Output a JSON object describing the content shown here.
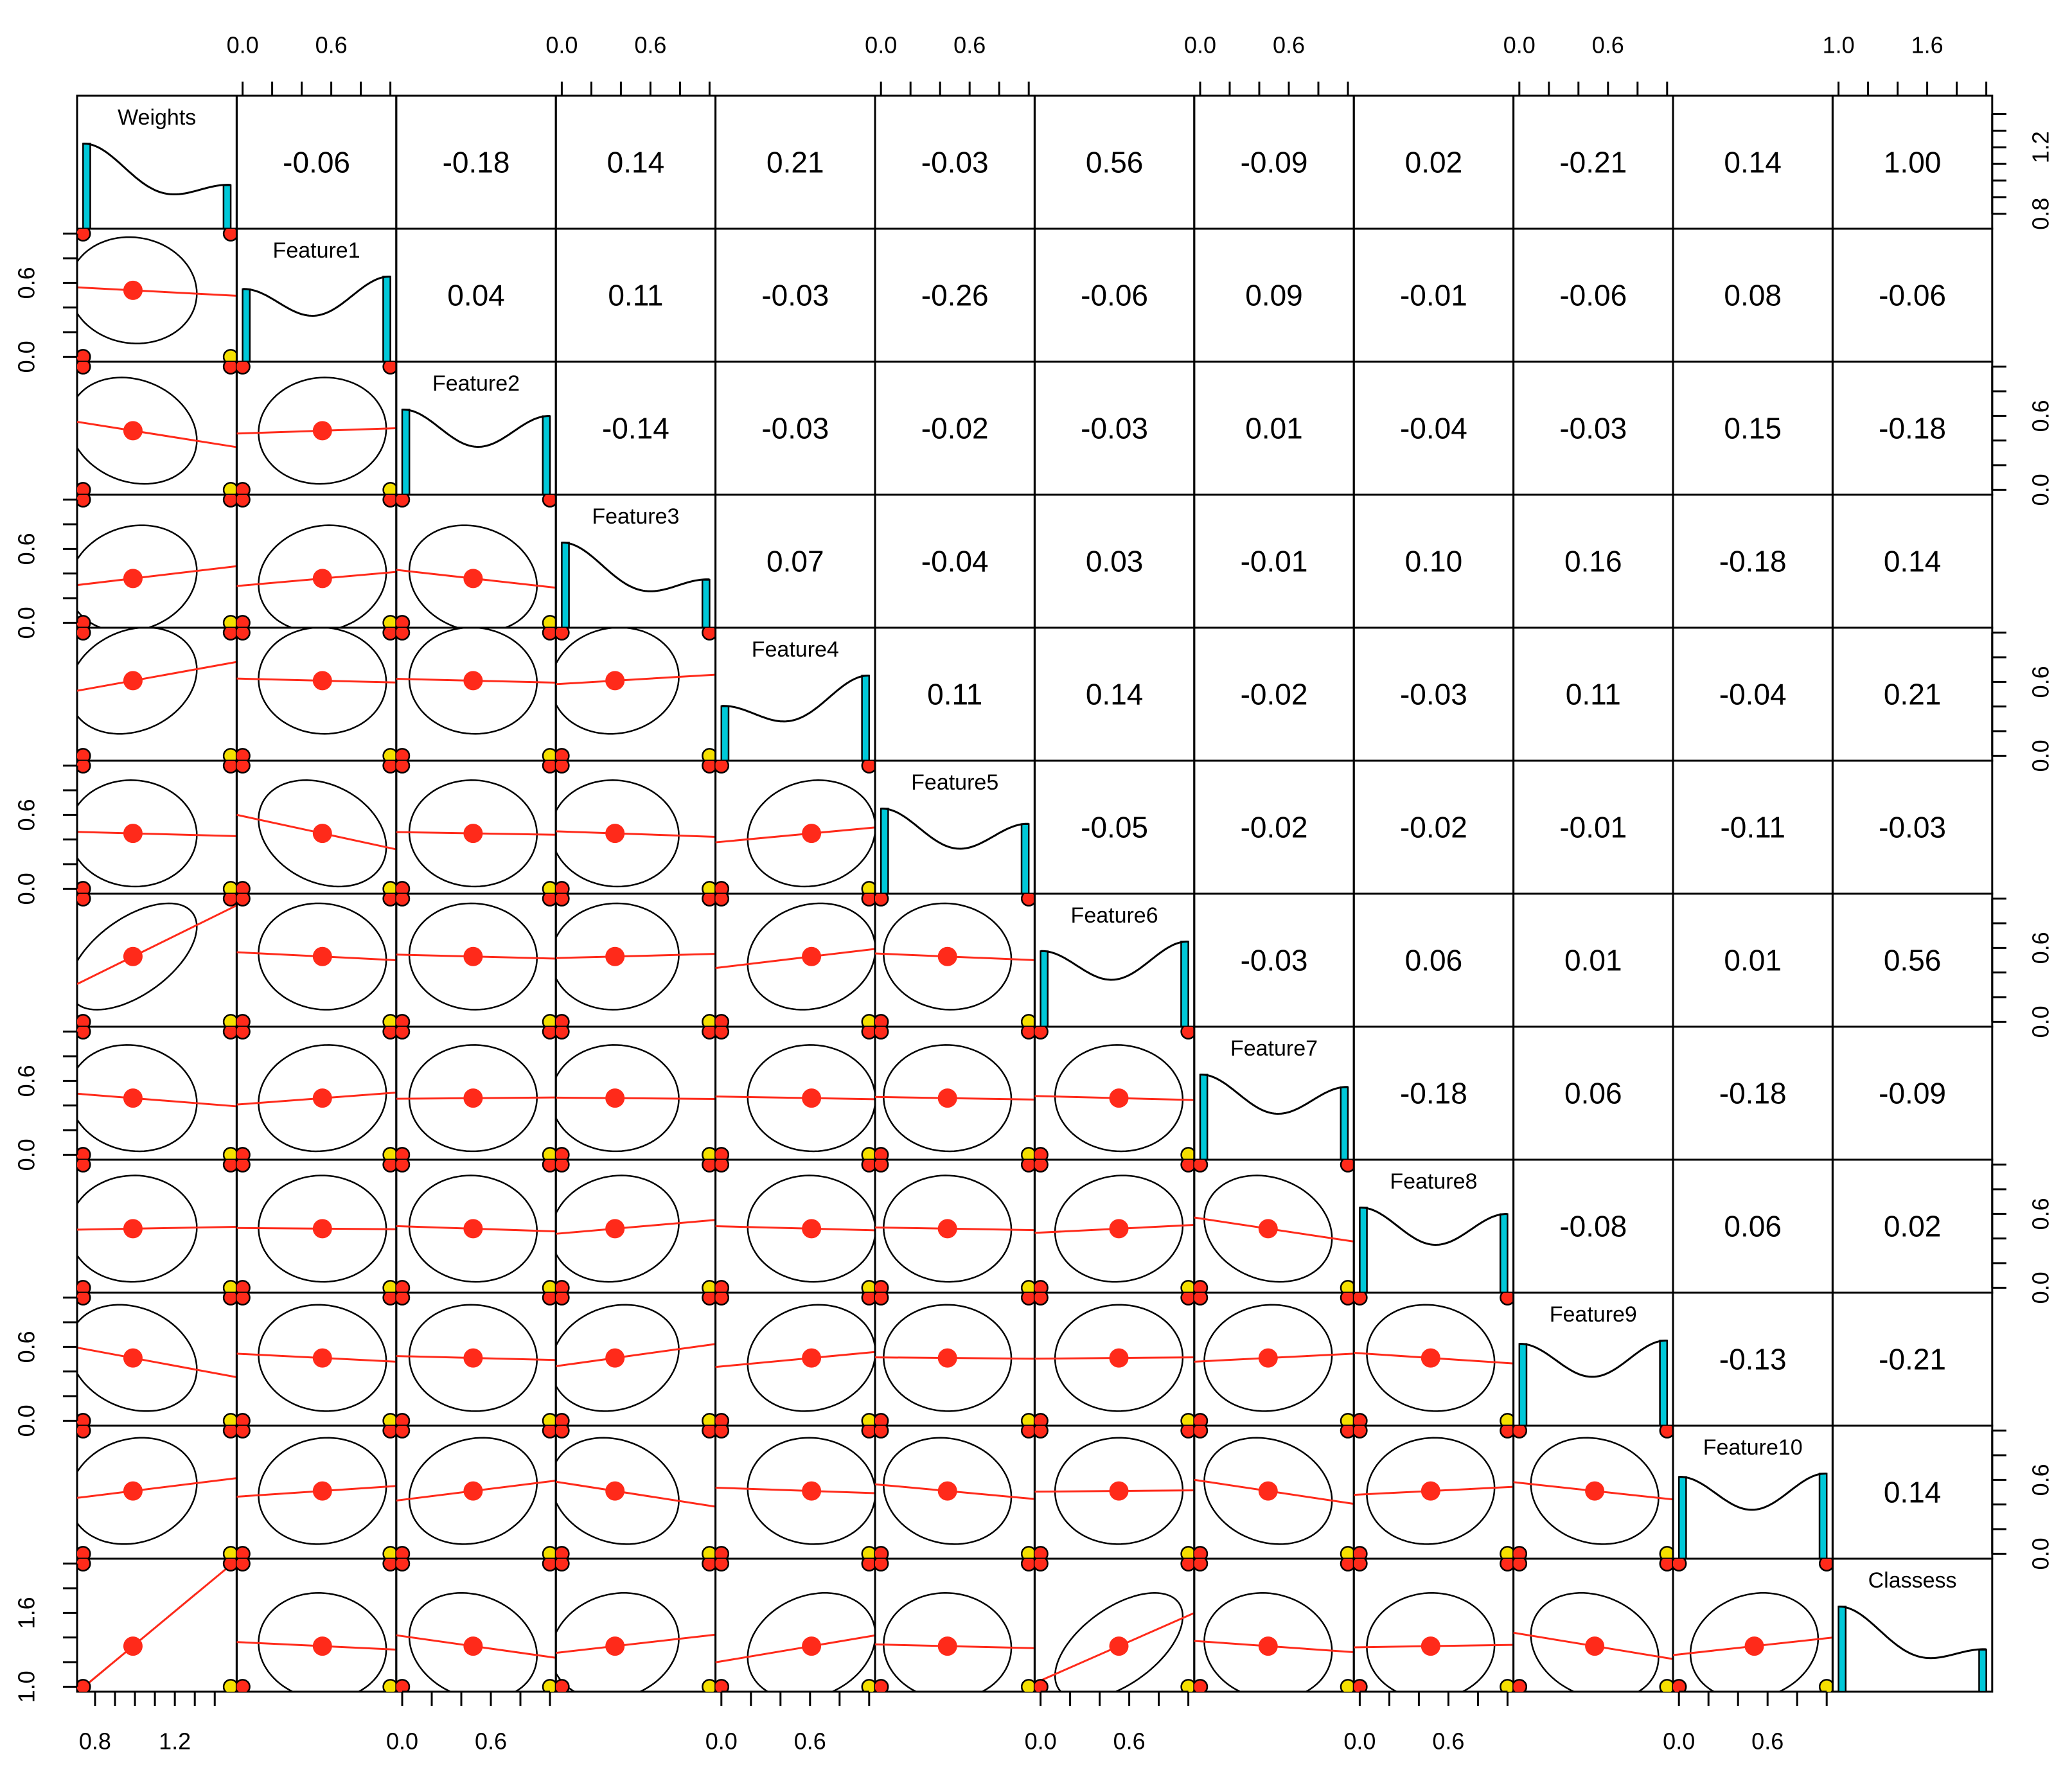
{
  "chart_data": {
    "type": "pairs",
    "variables": [
      {
        "name": "Weights",
        "levels": [
          0.74,
          1.48
        ],
        "mean": 0.99,
        "lim": [
          0.71,
          1.51
        ],
        "ticks": [
          0.8,
          1.2
        ],
        "minor_ticks": [
          0.9,
          1.0,
          1.1,
          1.3,
          1.4
        ]
      },
      {
        "name": "Feature1",
        "levels": [
          0,
          1
        ],
        "mean": 0.54,
        "lim": [
          -0.04,
          1.04
        ],
        "ticks": [
          {
            "value": 0,
            "label": "0.0"
          },
          0.6
        ],
        "minor_ticks": [
          0.2,
          0.4,
          0.8,
          1.0
        ]
      },
      {
        "name": "Feature2",
        "levels": [
          0,
          1
        ],
        "mean": 0.48,
        "lim": [
          -0.04,
          1.04
        ],
        "ticks": [
          {
            "value": 0,
            "label": "0.0"
          },
          0.6
        ],
        "minor_ticks": [
          0.2,
          0.4,
          0.8,
          1.0
        ]
      },
      {
        "name": "Feature3",
        "levels": [
          0,
          1
        ],
        "mean": 0.36,
        "lim": [
          -0.04,
          1.04
        ],
        "ticks": [
          {
            "value": 0,
            "label": "0.0"
          },
          0.6
        ],
        "minor_ticks": [
          0.2,
          0.4,
          0.8,
          1.0
        ]
      },
      {
        "name": "Feature4",
        "levels": [
          0,
          1
        ],
        "mean": 0.61,
        "lim": [
          -0.04,
          1.04
        ],
        "ticks": [
          {
            "value": 0,
            "label": "0.0"
          },
          0.6
        ],
        "minor_ticks": [
          0.2,
          0.4,
          0.8,
          1.0
        ]
      },
      {
        "name": "Feature5",
        "levels": [
          0,
          1
        ],
        "mean": 0.45,
        "lim": [
          -0.04,
          1.04
        ],
        "ticks": [
          {
            "value": 0,
            "label": "0.0"
          },
          0.6
        ],
        "minor_ticks": [
          0.2,
          0.4,
          0.8,
          1.0
        ]
      },
      {
        "name": "Feature6",
        "levels": [
          0,
          1
        ],
        "mean": 0.53,
        "lim": [
          -0.04,
          1.04
        ],
        "ticks": [
          {
            "value": 0,
            "label": "0.0"
          },
          0.6
        ],
        "minor_ticks": [
          0.2,
          0.4,
          0.8,
          1.0
        ]
      },
      {
        "name": "Feature7",
        "levels": [
          0,
          1
        ],
        "mean": 0.46,
        "lim": [
          -0.04,
          1.04
        ],
        "ticks": [
          {
            "value": 0,
            "label": "0.0"
          },
          0.6
        ],
        "minor_ticks": [
          0.2,
          0.4,
          0.8,
          1.0
        ]
      },
      {
        "name": "Feature8",
        "levels": [
          0,
          1
        ],
        "mean": 0.48,
        "lim": [
          -0.04,
          1.04
        ],
        "ticks": [
          {
            "value": 0,
            "label": "0.0"
          },
          0.6
        ],
        "minor_ticks": [
          0.2,
          0.4,
          0.8,
          1.0
        ]
      },
      {
        "name": "Feature9",
        "levels": [
          0,
          1
        ],
        "mean": 0.51,
        "lim": [
          -0.04,
          1.04
        ],
        "ticks": [
          {
            "value": 0,
            "label": "0.0"
          },
          0.6
        ],
        "minor_ticks": [
          0.2,
          0.4,
          0.8,
          1.0
        ]
      },
      {
        "name": "Feature10",
        "levels": [
          0,
          1
        ],
        "mean": 0.51,
        "lim": [
          -0.04,
          1.04
        ],
        "ticks": [
          {
            "value": 0,
            "label": "0.0"
          },
          0.6
        ],
        "minor_ticks": [
          0.2,
          0.4,
          0.8,
          1.0
        ]
      },
      {
        "name": "Classess",
        "levels": [
          1,
          2
        ],
        "mean": 1.33,
        "lim": [
          0.96,
          2.04
        ],
        "ticks": [
          {
            "value": 1,
            "label": "1.0"
          },
          1.6
        ],
        "minor_ticks": [
          1.2,
          1.4,
          1.8,
          2.0
        ]
      }
    ],
    "correlations": [
      [
        -0.06,
        -0.18,
        0.14,
        0.21,
        -0.03,
        0.56,
        -0.09,
        0.02,
        -0.21,
        0.14,
        1.0
      ],
      [
        0.04,
        0.11,
        -0.03,
        -0.26,
        -0.06,
        0.09,
        -0.01,
        -0.06,
        0.08,
        -0.06
      ],
      [
        -0.14,
        -0.03,
        -0.02,
        -0.03,
        0.01,
        -0.04,
        -0.03,
        0.15,
        -0.18
      ],
      [
        0.07,
        -0.04,
        0.03,
        -0.01,
        0.1,
        0.16,
        -0.18,
        0.14
      ],
      [
        0.11,
        0.14,
        -0.02,
        -0.03,
        0.11,
        -0.04,
        0.21
      ],
      [
        -0.05,
        -0.02,
        -0.02,
        -0.01,
        -0.11,
        -0.03
      ],
      [
        -0.03,
        0.06,
        0.01,
        0.01,
        0.56
      ],
      [
        -0.18,
        0.06,
        -0.18,
        -0.09
      ],
      [
        -0.08,
        0.06,
        0.02
      ],
      [
        -0.13,
        -0.21
      ],
      [
        0.14
      ]
    ],
    "correlation_labels": [
      [
        "-0.06",
        "-0.18",
        "0.14",
        "0.21",
        "-0.03",
        "0.56",
        "-0.09",
        "0.02",
        "-0.21",
        "0.14",
        "1.00"
      ],
      [
        "0.04",
        "0.11",
        "-0.03",
        "-0.26",
        "-0.06",
        "0.09",
        "-0.01",
        "-0.06",
        "0.08",
        "-0.06"
      ],
      [
        "-0.14",
        "-0.03",
        "-0.02",
        "-0.03",
        "0.01",
        "-0.04",
        "-0.03",
        "0.15",
        "-0.18"
      ],
      [
        "0.07",
        "-0.04",
        "0.03",
        "-0.01",
        "0.10",
        "0.16",
        "-0.18",
        "0.14"
      ],
      [
        "0.11",
        "0.14",
        "-0.02",
        "-0.03",
        "0.11",
        "-0.04",
        "0.21"
      ],
      [
        "-0.05",
        "-0.02",
        "-0.02",
        "-0.01",
        "-0.11",
        "-0.03"
      ],
      [
        "-0.03",
        "0.06",
        "0.01",
        "0.01",
        "0.56"
      ],
      [
        "-0.18",
        "0.06",
        "-0.18",
        "-0.09"
      ],
      [
        "-0.08",
        "0.06",
        "0.02"
      ],
      [
        "-0.13",
        "-0.21"
      ],
      [
        "0.14"
      ]
    ]
  }
}
